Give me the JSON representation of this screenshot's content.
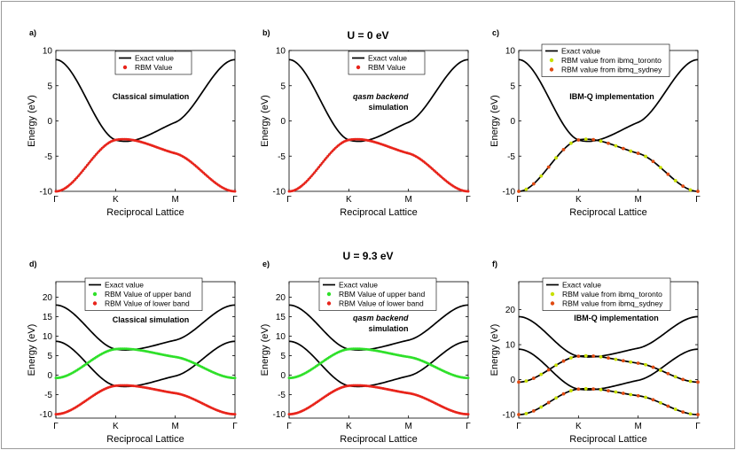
{
  "figure": {
    "title_top": "U = 0 eV",
    "title_bottom": "U = 9.3 eV"
  },
  "colors": {
    "exact": "#000000",
    "rbm_red": "#e8241b",
    "rbm_green": "#2fe02a",
    "toronto": "#c8e000",
    "sydney": "#e04a12"
  },
  "chart_data": [
    {
      "type": "line",
      "panel_label": "a)",
      "ylabel": "Energy (eV)",
      "xlabel": "Reciprocal Lattice",
      "xticks": [
        "Γ",
        "K",
        "M",
        "Γ"
      ],
      "ylim": [
        -10,
        10
      ],
      "yticks": [
        -10,
        -5,
        0,
        5,
        10
      ],
      "annotation": [
        "Classical simulation"
      ],
      "legend": [
        "Exact value",
        "RBM Value"
      ],
      "series": [
        {
          "name": "Exact value",
          "values": [
            [
              0,
              8.7
            ],
            [
              1,
              -2.7
            ],
            [
              2,
              -0.2
            ],
            [
              3,
              8.7
            ]
          ]
        },
        {
          "name": "Exact value",
          "values": [
            [
              0,
              -10
            ],
            [
              1,
              -2.7
            ],
            [
              2,
              -4.6
            ],
            [
              3,
              -10
            ]
          ]
        },
        {
          "name": "RBM Value",
          "style": "dense",
          "values": [
            [
              0,
              -10
            ],
            [
              1,
              -2.7
            ],
            [
              2,
              -4.6
            ],
            [
              3,
              -10
            ]
          ]
        }
      ]
    },
    {
      "type": "line",
      "panel_label": "b)",
      "ylabel": "Energy (eV)",
      "xlabel": "Reciprocal Lattice",
      "xticks": [
        "Γ",
        "K",
        "M",
        "Γ"
      ],
      "ylim": [
        -10,
        10
      ],
      "yticks": [
        -10,
        -5,
        0,
        5,
        10
      ],
      "annotation": [
        "qasm backend",
        "simulation"
      ],
      "legend": [
        "Exact value",
        "RBM Value"
      ],
      "series": [
        {
          "name": "Exact value",
          "values": [
            [
              0,
              8.7
            ],
            [
              1,
              -2.7
            ],
            [
              2,
              -0.2
            ],
            [
              3,
              8.7
            ]
          ]
        },
        {
          "name": "Exact value",
          "values": [
            [
              0,
              -10
            ],
            [
              1,
              -2.7
            ],
            [
              2,
              -4.6
            ],
            [
              3,
              -10
            ]
          ]
        },
        {
          "name": "RBM Value",
          "style": "dense",
          "values": [
            [
              0,
              -10
            ],
            [
              1,
              -2.7
            ],
            [
              2,
              -4.6
            ],
            [
              3,
              -10
            ]
          ]
        }
      ]
    },
    {
      "type": "line",
      "panel_label": "c)",
      "ylabel": "Energy (eV)",
      "xlabel": "Reciprocal Lattice",
      "xticks": [
        "Γ",
        "K",
        "M",
        "Γ"
      ],
      "ylim": [
        -10,
        10
      ],
      "yticks": [
        -10,
        -5,
        0,
        5,
        10
      ],
      "annotation": [
        "IBM-Q implementation"
      ],
      "legend": [
        "Exact value",
        "RBM value from ibmq_toronto",
        "RBM value from ibmq_sydney"
      ],
      "series": [
        {
          "name": "Exact value",
          "values": [
            [
              0,
              8.7
            ],
            [
              1,
              -2.7
            ],
            [
              2,
              -0.2
            ],
            [
              3,
              8.7
            ]
          ]
        },
        {
          "name": "Exact value",
          "values": [
            [
              0,
              -10
            ],
            [
              1,
              -2.7
            ],
            [
              2,
              -4.6
            ],
            [
              3,
              -10
            ]
          ]
        },
        {
          "name": "RBM value from ibmq_toronto",
          "style": "sparse",
          "values": [
            [
              0,
              -10
            ],
            [
              1,
              -2.7
            ],
            [
              2,
              -4.6
            ],
            [
              3,
              -10
            ]
          ]
        },
        {
          "name": "RBM value from ibmq_sydney",
          "style": "sparse",
          "values": [
            [
              0,
              -10
            ],
            [
              1,
              -2.7
            ],
            [
              2,
              -4.6
            ],
            [
              3,
              -10
            ]
          ]
        }
      ]
    },
    {
      "type": "line",
      "panel_label": "d)",
      "ylabel": "Energy (eV)",
      "xlabel": "Reciprocal Lattice",
      "xticks": [
        "Γ",
        "K",
        "M",
        "Γ"
      ],
      "ylim": [
        -11,
        24
      ],
      "yticks": [
        -10,
        -5,
        0,
        5,
        10,
        15,
        20
      ],
      "annotation": [
        "Classical simulation"
      ],
      "legend": [
        "Exact value",
        "RBM Value of upper band",
        "RBM Value of lower band"
      ],
      "series": [
        {
          "name": "Exact value",
          "values": [
            [
              0,
              18
            ],
            [
              1,
              6.7
            ],
            [
              2,
              9
            ],
            [
              3,
              18
            ]
          ]
        },
        {
          "name": "Exact value",
          "values": [
            [
              0,
              8.7
            ],
            [
              1,
              -2.7
            ],
            [
              2,
              -0.2
            ],
            [
              3,
              8.7
            ]
          ]
        },
        {
          "name": "Exact value",
          "values": [
            [
              0,
              -0.7
            ],
            [
              1,
              6.7
            ],
            [
              2,
              4.7
            ],
            [
              3,
              -0.7
            ]
          ]
        },
        {
          "name": "Exact value",
          "values": [
            [
              0,
              -10
            ],
            [
              1,
              -2.7
            ],
            [
              2,
              -4.6
            ],
            [
              3,
              -10
            ]
          ]
        },
        {
          "name": "RBM Value of upper band",
          "style": "dense",
          "values": [
            [
              0,
              -0.7
            ],
            [
              1,
              6.7
            ],
            [
              2,
              4.7
            ],
            [
              3,
              -0.7
            ]
          ]
        },
        {
          "name": "RBM Value of lower band",
          "style": "dense",
          "values": [
            [
              0,
              -10
            ],
            [
              1,
              -2.7
            ],
            [
              2,
              -4.6
            ],
            [
              3,
              -10
            ]
          ]
        }
      ]
    },
    {
      "type": "line",
      "panel_label": "e)",
      "ylabel": "Energy (eV)",
      "xlabel": "Reciprocal Lattice",
      "xticks": [
        "Γ",
        "K",
        "M",
        "Γ"
      ],
      "ylim": [
        -11,
        24
      ],
      "yticks": [
        -10,
        -5,
        0,
        5,
        10,
        15,
        20
      ],
      "annotation": [
        "qasm backend",
        "simulation"
      ],
      "legend": [
        "Exact value",
        "RBM Value of upper band",
        "RBM Value of lower band"
      ],
      "series": [
        {
          "name": "Exact value",
          "values": [
            [
              0,
              18
            ],
            [
              1,
              6.7
            ],
            [
              2,
              9
            ],
            [
              3,
              18
            ]
          ]
        },
        {
          "name": "Exact value",
          "values": [
            [
              0,
              8.7
            ],
            [
              1,
              -2.7
            ],
            [
              2,
              -0.2
            ],
            [
              3,
              8.7
            ]
          ]
        },
        {
          "name": "Exact value",
          "values": [
            [
              0,
              -0.7
            ],
            [
              1,
              6.7
            ],
            [
              2,
              4.7
            ],
            [
              3,
              -0.7
            ]
          ]
        },
        {
          "name": "Exact value",
          "values": [
            [
              0,
              -10
            ],
            [
              1,
              -2.7
            ],
            [
              2,
              -4.6
            ],
            [
              3,
              -10
            ]
          ]
        },
        {
          "name": "RBM Value of upper band",
          "style": "dense",
          "values": [
            [
              0,
              -0.7
            ],
            [
              1,
              6.7
            ],
            [
              2,
              4.7
            ],
            [
              3,
              -0.7
            ]
          ]
        },
        {
          "name": "RBM Value of lower band",
          "style": "dense",
          "values": [
            [
              0,
              -10
            ],
            [
              1,
              -2.7
            ],
            [
              2,
              -4.6
            ],
            [
              3,
              -10
            ]
          ]
        }
      ]
    },
    {
      "type": "line",
      "panel_label": "f)",
      "ylabel": "Energy (eV)",
      "xlabel": "Reciprocal Lattice",
      "xticks": [
        "Γ",
        "K",
        "M",
        "Γ"
      ],
      "ylim": [
        -11,
        28
      ],
      "yticks": [
        -10,
        0,
        10,
        20
      ],
      "annotation": [
        "IBM-Q implementation"
      ],
      "legend": [
        "Exact value",
        "RBM value from ibmq_toronto",
        "RBM value from ibmq_sydney"
      ],
      "series": [
        {
          "name": "Exact value",
          "values": [
            [
              0,
              18
            ],
            [
              1,
              6.7
            ],
            [
              2,
              9
            ],
            [
              3,
              18
            ]
          ]
        },
        {
          "name": "Exact value",
          "values": [
            [
              0,
              8.7
            ],
            [
              1,
              -2.7
            ],
            [
              2,
              -0.2
            ],
            [
              3,
              8.7
            ]
          ]
        },
        {
          "name": "Exact value",
          "values": [
            [
              0,
              -0.7
            ],
            [
              1,
              6.7
            ],
            [
              2,
              4.7
            ],
            [
              3,
              -0.7
            ]
          ]
        },
        {
          "name": "Exact value",
          "values": [
            [
              0,
              -10
            ],
            [
              1,
              -2.7
            ],
            [
              2,
              -4.6
            ],
            [
              3,
              -10
            ]
          ]
        },
        {
          "name": "RBM value from ibmq_toronto",
          "style": "sparse",
          "values": [
            [
              0,
              -0.7
            ],
            [
              1,
              6.7
            ],
            [
              2,
              4.7
            ],
            [
              3,
              -0.7
            ]
          ]
        },
        {
          "name": "RBM value from ibmq_sydney",
          "style": "sparse",
          "values": [
            [
              0,
              -0.7
            ],
            [
              1,
              6.7
            ],
            [
              2,
              4.7
            ],
            [
              3,
              -0.7
            ]
          ]
        },
        {
          "name": "RBM value from ibmq_toronto",
          "style": "sparse",
          "values": [
            [
              0,
              -10
            ],
            [
              1,
              -2.7
            ],
            [
              2,
              -4.6
            ],
            [
              3,
              -10
            ]
          ]
        },
        {
          "name": "RBM value from ibmq_sydney",
          "style": "sparse",
          "values": [
            [
              0,
              -10
            ],
            [
              1,
              -2.7
            ],
            [
              2,
              -4.6
            ],
            [
              3,
              -10
            ]
          ]
        }
      ]
    }
  ]
}
